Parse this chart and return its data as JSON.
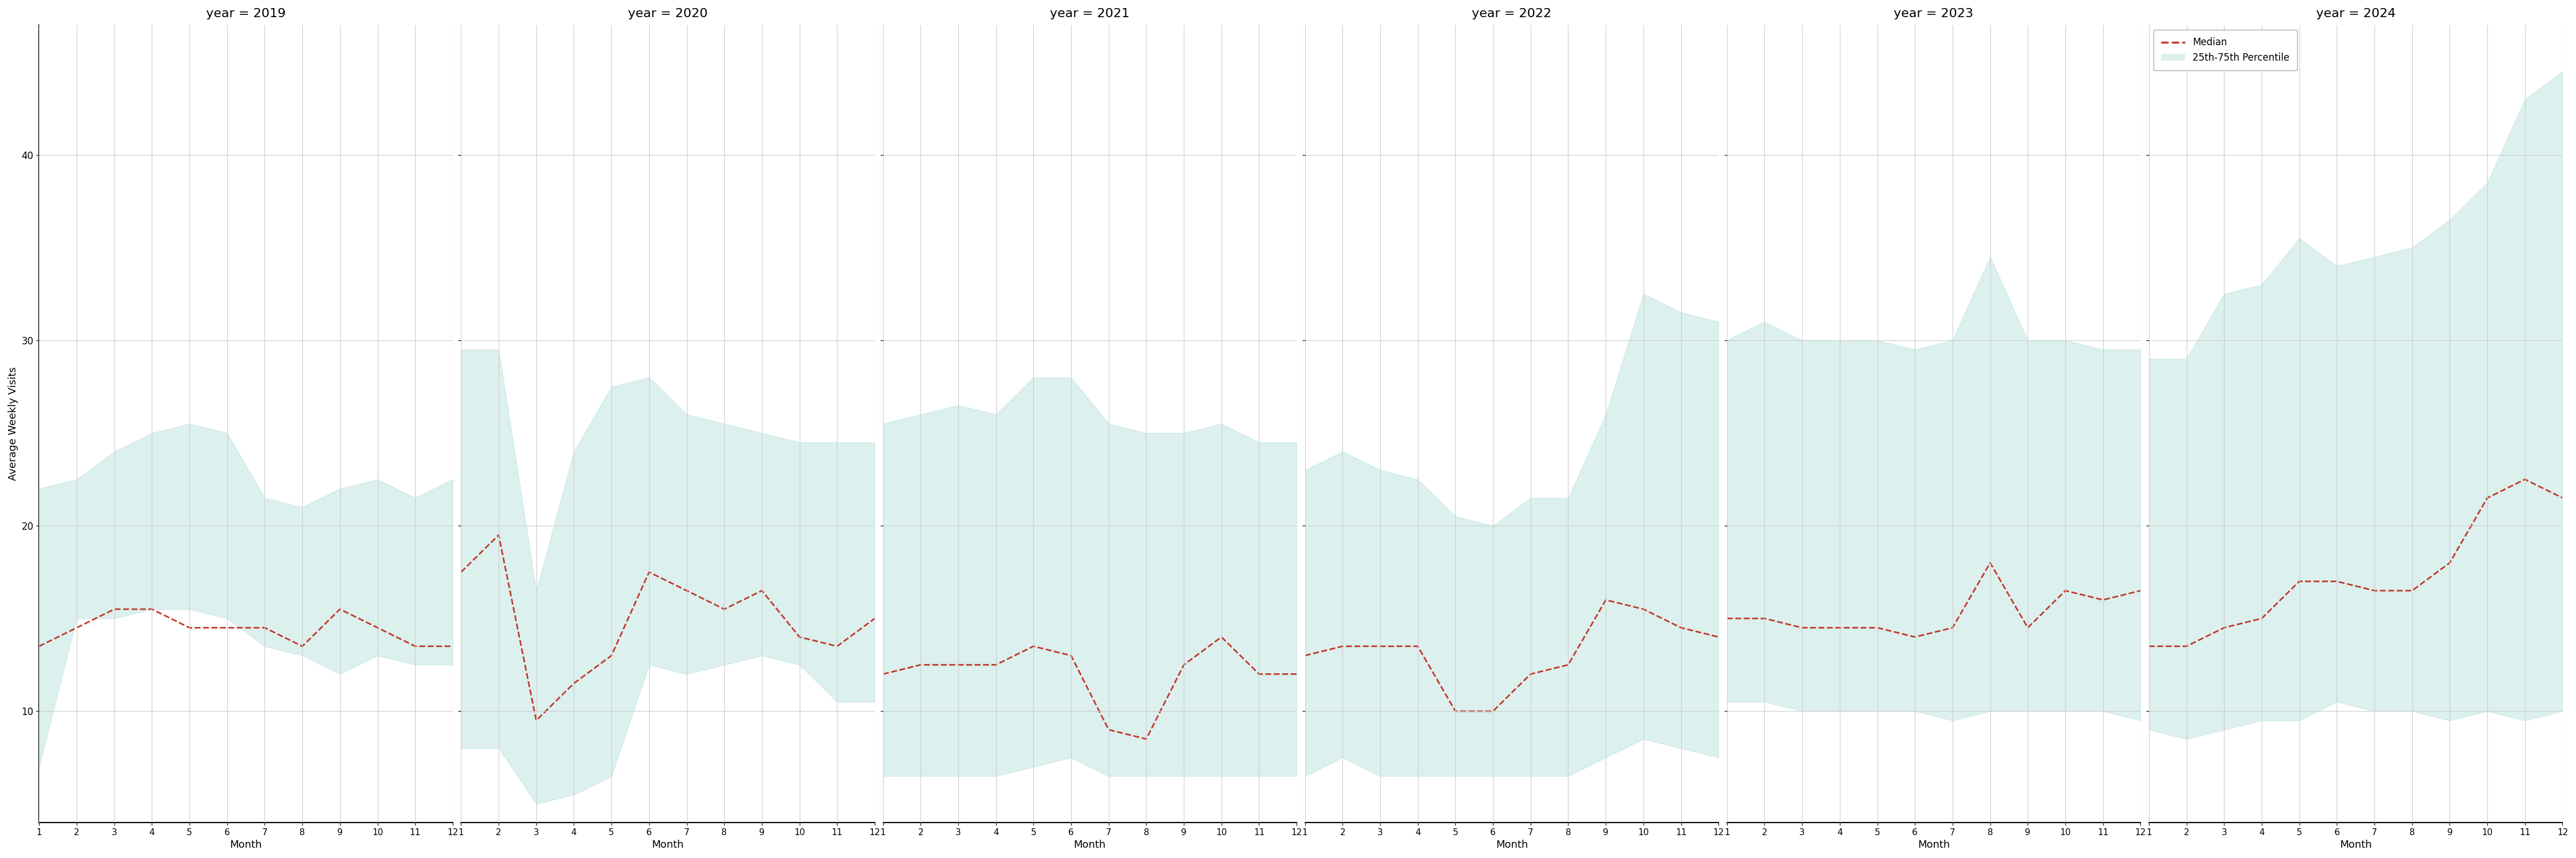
{
  "years": [
    2019,
    2020,
    2021,
    2022,
    2023,
    2024
  ],
  "months": [
    1,
    2,
    3,
    4,
    5,
    6,
    7,
    8,
    9,
    10,
    11,
    12
  ],
  "median": {
    "2019": [
      13.5,
      14.5,
      15.5,
      15.5,
      14.5,
      14.5,
      14.5,
      13.5,
      15.5,
      14.5,
      13.5,
      13.5
    ],
    "2020": [
      17.5,
      19.5,
      9.5,
      11.5,
      13.0,
      17.5,
      16.5,
      15.5,
      16.5,
      14.0,
      13.5,
      15.0
    ],
    "2021": [
      12.0,
      12.5,
      12.5,
      12.5,
      13.5,
      13.0,
      9.0,
      8.5,
      12.5,
      14.0,
      12.0,
      12.0
    ],
    "2022": [
      13.0,
      13.5,
      13.5,
      13.5,
      10.0,
      10.0,
      12.0,
      12.5,
      16.0,
      15.5,
      14.5,
      14.0
    ],
    "2023": [
      15.0,
      15.0,
      14.5,
      14.5,
      14.5,
      14.0,
      14.5,
      18.0,
      14.5,
      16.5,
      16.0,
      16.5
    ],
    "2024": [
      13.5,
      13.5,
      14.5,
      15.0,
      17.0,
      17.0,
      16.5,
      16.5,
      18.0,
      21.5,
      22.5,
      21.5
    ]
  },
  "p25": {
    "2019": [
      7.0,
      15.0,
      15.0,
      15.5,
      15.5,
      15.0,
      13.5,
      13.0,
      12.0,
      13.0,
      12.5,
      12.5
    ],
    "2020": [
      8.0,
      8.0,
      5.0,
      5.5,
      6.5,
      12.5,
      12.0,
      12.5,
      13.0,
      12.5,
      10.5,
      10.5
    ],
    "2021": [
      6.5,
      6.5,
      6.5,
      6.5,
      7.0,
      7.5,
      6.5,
      6.5,
      6.5,
      6.5,
      6.5,
      6.5
    ],
    "2022": [
      6.5,
      7.5,
      6.5,
      6.5,
      6.5,
      6.5,
      6.5,
      6.5,
      7.5,
      8.5,
      8.0,
      7.5
    ],
    "2023": [
      10.5,
      10.5,
      10.0,
      10.0,
      10.0,
      10.0,
      9.5,
      10.0,
      10.0,
      10.0,
      10.0,
      9.5
    ],
    "2024": [
      9.0,
      8.5,
      9.0,
      9.5,
      9.5,
      10.5,
      10.0,
      10.0,
      9.5,
      10.0,
      9.5,
      10.0
    ]
  },
  "p75": {
    "2019": [
      22.0,
      22.5,
      24.0,
      25.0,
      25.5,
      25.0,
      21.5,
      21.0,
      22.0,
      22.5,
      21.5,
      22.5
    ],
    "2020": [
      29.5,
      29.5,
      16.5,
      24.0,
      27.5,
      28.0,
      26.0,
      25.5,
      25.0,
      24.5,
      24.5,
      24.5
    ],
    "2021": [
      25.5,
      26.0,
      26.5,
      26.0,
      28.0,
      28.0,
      25.5,
      25.0,
      25.0,
      25.5,
      24.5,
      24.5
    ],
    "2022": [
      23.0,
      24.0,
      23.0,
      22.5,
      20.5,
      20.0,
      21.5,
      21.5,
      26.0,
      32.5,
      31.5,
      31.0
    ],
    "2023": [
      30.0,
      31.0,
      30.0,
      30.0,
      30.0,
      29.5,
      30.0,
      34.5,
      30.0,
      30.0,
      29.5,
      29.5
    ],
    "2024": [
      29.0,
      29.0,
      32.5,
      33.0,
      35.5,
      34.0,
      34.5,
      35.0,
      36.5,
      38.5,
      43.0,
      44.5
    ]
  },
  "fill_color": "#b2dfdb",
  "fill_alpha": 0.45,
  "line_color": "#c0392b",
  "line_style": "--",
  "line_width": 2.0,
  "ylabel": "Average Weekly Visits",
  "xlabel": "Month",
  "ylim": [
    4,
    47
  ],
  "yticks": [
    10,
    20,
    30,
    40
  ],
  "grid_color": "#cccccc",
  "title_prefix": "year = ",
  "background_color": "#ffffff",
  "legend_labels": [
    "Median",
    "25th-75th Percentile"
  ]
}
